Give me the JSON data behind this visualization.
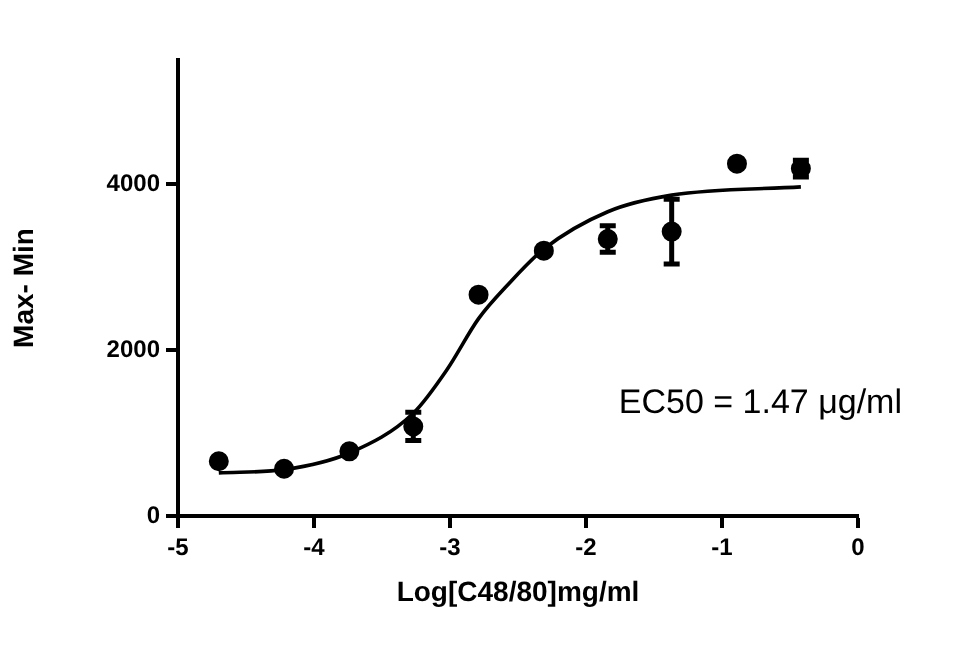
{
  "chart_data": {
    "type": "scatter",
    "xlabel": "Log[C48/80]mg/ml",
    "ylabel": "Max- Min",
    "annotations": [
      "EC50 = 1.47 μg/ml"
    ],
    "xlim": [
      -5,
      0
    ],
    "xticks": [
      -5,
      -4,
      -3,
      -2,
      -1,
      0
    ],
    "ylim": [
      0,
      5500
    ],
    "yticks": [
      0,
      2000,
      4000
    ],
    "grid": false,
    "legend": false,
    "marker": "circle",
    "series": [
      {
        "color": "#000000",
        "x": [
          -4.7,
          -4.22,
          -3.74,
          -3.27,
          -2.79,
          -2.31,
          -1.84,
          -1.37,
          -0.89,
          -0.42
        ],
        "values": [
          660,
          570,
          780,
          1080,
          2670,
          3200,
          3340,
          3430,
          4250,
          4190
        ],
        "errors": [
          null,
          null,
          null,
          170,
          null,
          null,
          160,
          390,
          null,
          100
        ]
      },
      {
        "type": "line",
        "color": "#000000",
        "marker": "none",
        "line_style": "solid",
        "x": [
          -4.7,
          -4.22,
          -3.74,
          -3.27,
          -3.02,
          -2.79,
          -2.58,
          -2.31,
          -1.84,
          -1.37,
          -0.42
        ],
        "values": [
          520,
          560,
          760,
          1240,
          1770,
          2380,
          2780,
          3220,
          3670,
          3870,
          3970
        ]
      }
    ]
  }
}
